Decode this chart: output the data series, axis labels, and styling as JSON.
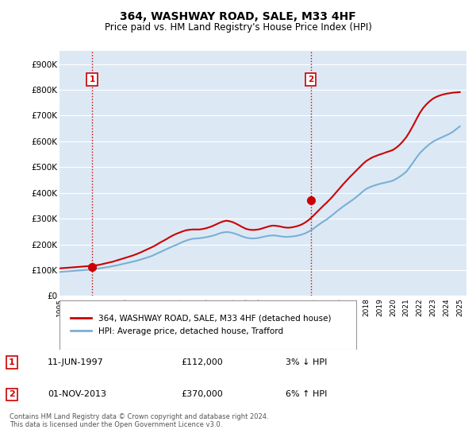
{
  "title": "364, WASHWAY ROAD, SALE, M33 4HF",
  "subtitle": "Price paid vs. HM Land Registry's House Price Index (HPI)",
  "ylim": [
    0,
    950000
  ],
  "yticks": [
    0,
    100000,
    200000,
    300000,
    400000,
    500000,
    600000,
    700000,
    800000,
    900000
  ],
  "ytick_labels": [
    "£0",
    "£100K",
    "£200K",
    "£300K",
    "£400K",
    "£500K",
    "£600K",
    "£700K",
    "£800K",
    "£900K"
  ],
  "xlim_start": 1995.0,
  "xlim_end": 2025.5,
  "sale_color": "#cc0000",
  "hpi_color": "#7bafd4",
  "purchase1_x": 1997.44,
  "purchase1_y": 112000,
  "purchase2_x": 2013.83,
  "purchase2_y": 370000,
  "vline_color": "#cc0000",
  "annotation1_label": "1",
  "annotation2_label": "2",
  "legend_sale_label": "364, WASHWAY ROAD, SALE, M33 4HF (detached house)",
  "legend_hpi_label": "HPI: Average price, detached house, Trafford",
  "table_row1": [
    "1",
    "11-JUN-1997",
    "£112,000",
    "3% ↓ HPI"
  ],
  "table_row2": [
    "2",
    "01-NOV-2013",
    "£370,000",
    "6% ↑ HPI"
  ],
  "footer": "Contains HM Land Registry data © Crown copyright and database right 2024.\nThis data is licensed under the Open Government Licence v3.0.",
  "background_color": "#ffffff",
  "chart_bg_color": "#dce9f5",
  "grid_color": "#ffffff",
  "hpi_years": [
    1995.0,
    1995.25,
    1995.5,
    1995.75,
    1996.0,
    1996.25,
    1996.5,
    1996.75,
    1997.0,
    1997.25,
    1997.5,
    1997.75,
    1998.0,
    1998.25,
    1998.5,
    1998.75,
    1999.0,
    1999.25,
    1999.5,
    1999.75,
    2000.0,
    2000.25,
    2000.5,
    2000.75,
    2001.0,
    2001.25,
    2001.5,
    2001.75,
    2002.0,
    2002.25,
    2002.5,
    2002.75,
    2003.0,
    2003.25,
    2003.5,
    2003.75,
    2004.0,
    2004.25,
    2004.5,
    2004.75,
    2005.0,
    2005.25,
    2005.5,
    2005.75,
    2006.0,
    2006.25,
    2006.5,
    2006.75,
    2007.0,
    2007.25,
    2007.5,
    2007.75,
    2008.0,
    2008.25,
    2008.5,
    2008.75,
    2009.0,
    2009.25,
    2009.5,
    2009.75,
    2010.0,
    2010.25,
    2010.5,
    2010.75,
    2011.0,
    2011.25,
    2011.5,
    2011.75,
    2012.0,
    2012.25,
    2012.5,
    2012.75,
    2013.0,
    2013.25,
    2013.5,
    2013.75,
    2014.0,
    2014.25,
    2014.5,
    2014.75,
    2015.0,
    2015.25,
    2015.5,
    2015.75,
    2016.0,
    2016.25,
    2016.5,
    2016.75,
    2017.0,
    2017.25,
    2017.5,
    2017.75,
    2018.0,
    2018.25,
    2018.5,
    2018.75,
    2019.0,
    2019.25,
    2019.5,
    2019.75,
    2020.0,
    2020.25,
    2020.5,
    2020.75,
    2021.0,
    2021.25,
    2021.5,
    2021.75,
    2022.0,
    2022.25,
    2022.5,
    2022.75,
    2023.0,
    2023.25,
    2023.5,
    2023.75,
    2024.0,
    2024.25,
    2024.5,
    2024.75,
    2025.0
  ],
  "hpi_values": [
    93000,
    94000,
    95000,
    96000,
    97000,
    98000,
    99000,
    100000,
    101000,
    102000,
    103000,
    105000,
    107000,
    109000,
    111000,
    113000,
    116000,
    118000,
    121000,
    124000,
    127000,
    130000,
    133000,
    136000,
    140000,
    144000,
    148000,
    152000,
    157000,
    163000,
    169000,
    175000,
    181000,
    187000,
    193000,
    198000,
    204000,
    210000,
    215000,
    219000,
    222000,
    223000,
    224000,
    226000,
    228000,
    231000,
    234000,
    238000,
    243000,
    246000,
    248000,
    247000,
    244000,
    240000,
    235000,
    230000,
    226000,
    224000,
    223000,
    224000,
    226000,
    229000,
    232000,
    234000,
    235000,
    234000,
    232000,
    230000,
    229000,
    230000,
    231000,
    233000,
    236000,
    240000,
    245000,
    252000,
    260000,
    270000,
    279000,
    288000,
    296000,
    306000,
    316000,
    327000,
    337000,
    347000,
    356000,
    365000,
    374000,
    384000,
    395000,
    406000,
    416000,
    422000,
    427000,
    431000,
    435000,
    438000,
    441000,
    444000,
    448000,
    455000,
    463000,
    472000,
    483000,
    500000,
    518000,
    537000,
    554000,
    567000,
    579000,
    590000,
    599000,
    606000,
    612000,
    618000,
    624000,
    630000,
    638000,
    648000,
    658000
  ],
  "sale_years": [
    1995.0,
    1995.25,
    1995.5,
    1995.75,
    1996.0,
    1996.25,
    1996.5,
    1996.75,
    1997.0,
    1997.25,
    1997.5,
    1997.75,
    1998.0,
    1998.25,
    1998.5,
    1998.75,
    1999.0,
    1999.25,
    1999.5,
    1999.75,
    2000.0,
    2000.25,
    2000.5,
    2000.75,
    2001.0,
    2001.25,
    2001.5,
    2001.75,
    2002.0,
    2002.25,
    2002.5,
    2002.75,
    2003.0,
    2003.25,
    2003.5,
    2003.75,
    2004.0,
    2004.25,
    2004.5,
    2004.75,
    2005.0,
    2005.25,
    2005.5,
    2005.75,
    2006.0,
    2006.25,
    2006.5,
    2006.75,
    2007.0,
    2007.25,
    2007.5,
    2007.75,
    2008.0,
    2008.25,
    2008.5,
    2008.75,
    2009.0,
    2009.25,
    2009.5,
    2009.75,
    2010.0,
    2010.25,
    2010.5,
    2010.75,
    2011.0,
    2011.25,
    2011.5,
    2011.75,
    2012.0,
    2012.25,
    2012.5,
    2012.75,
    2013.0,
    2013.25,
    2013.5,
    2013.75,
    2014.0,
    2014.25,
    2014.5,
    2014.75,
    2015.0,
    2015.25,
    2015.5,
    2015.75,
    2016.0,
    2016.25,
    2016.5,
    2016.75,
    2017.0,
    2017.25,
    2017.5,
    2017.75,
    2018.0,
    2018.25,
    2018.5,
    2018.75,
    2019.0,
    2019.25,
    2019.5,
    2019.75,
    2020.0,
    2020.25,
    2020.5,
    2020.75,
    2021.0,
    2021.25,
    2021.5,
    2021.75,
    2022.0,
    2022.25,
    2022.5,
    2022.75,
    2023.0,
    2023.25,
    2023.5,
    2023.75,
    2024.0,
    2024.25,
    2024.5,
    2024.75,
    2025.0
  ],
  "sale_values": [
    107000,
    108000,
    109000,
    110000,
    111000,
    112000,
    113000,
    114000,
    115000,
    116000,
    117000,
    119000,
    121000,
    124000,
    127000,
    130000,
    133000,
    137000,
    141000,
    145000,
    149000,
    153000,
    157000,
    162000,
    167000,
    173000,
    179000,
    185000,
    191000,
    198000,
    206000,
    213000,
    220000,
    228000,
    235000,
    241000,
    246000,
    251000,
    255000,
    257000,
    258000,
    258000,
    258000,
    260000,
    263000,
    267000,
    272000,
    278000,
    284000,
    289000,
    292000,
    290000,
    286000,
    280000,
    273000,
    266000,
    260000,
    257000,
    256000,
    257000,
    259000,
    263000,
    267000,
    271000,
    273000,
    272000,
    270000,
    267000,
    265000,
    265000,
    267000,
    270000,
    274000,
    280000,
    288000,
    298000,
    310000,
    323000,
    336000,
    349000,
    361000,
    374000,
    388000,
    403000,
    418000,
    433000,
    447000,
    461000,
    474000,
    487000,
    500000,
    513000,
    524000,
    532000,
    539000,
    544000,
    549000,
    553000,
    558000,
    562000,
    567000,
    576000,
    587000,
    601000,
    617000,
    638000,
    661000,
    686000,
    710000,
    729000,
    744000,
    756000,
    766000,
    773000,
    778000,
    782000,
    785000,
    787000,
    789000,
    790000,
    791000
  ]
}
